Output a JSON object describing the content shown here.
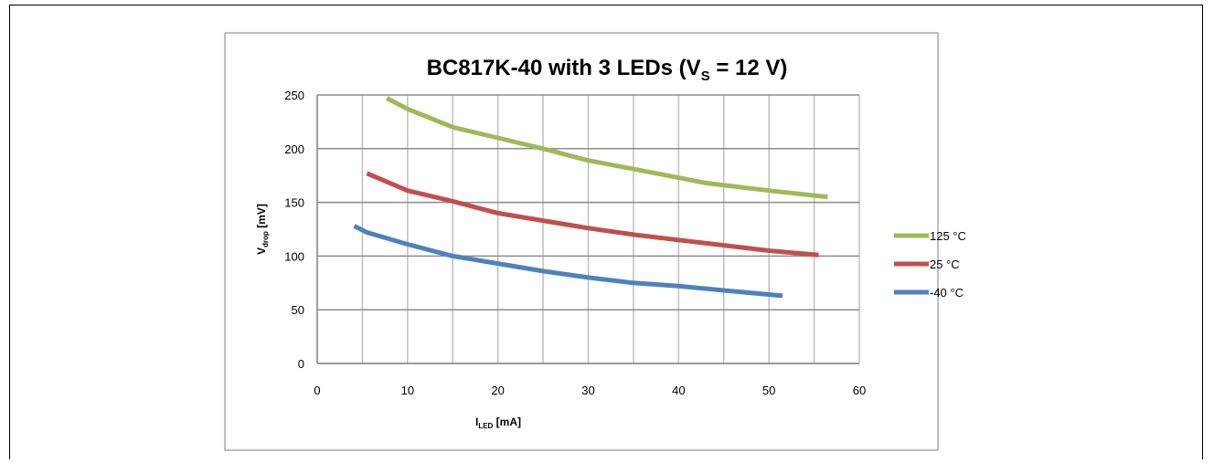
{
  "chart_data": {
    "type": "line",
    "title": {
      "main": "BC817K-40 with 3 LEDs (V",
      "sub": "S",
      "tail": " = 12 V)"
    },
    "xlabel": {
      "main": "I",
      "sub": "LED",
      "tail": " [mA]"
    },
    "ylabel": {
      "main": "V",
      "sub": "drop",
      "tail": " [mV]"
    },
    "xlim": [
      0,
      60
    ],
    "ylim": [
      0,
      250
    ],
    "x_ticks": [
      0,
      10,
      20,
      30,
      40,
      50,
      60
    ],
    "y_ticks": [
      0,
      50,
      100,
      150,
      200,
      250
    ],
    "x_minor_step": 5,
    "grid": true,
    "legend_position": "right",
    "series": [
      {
        "name": "125 °C",
        "color": "#9BBB59",
        "x": [
          7.7,
          10,
          15,
          20,
          25,
          30,
          35,
          40,
          43,
          50,
          56.5
        ],
        "y": [
          247,
          237,
          220,
          210,
          200,
          189,
          181,
          173,
          168,
          161,
          155
        ]
      },
      {
        "name": "25 °C",
        "color": "#C0504D",
        "x": [
          5.5,
          10,
          15,
          20,
          25,
          30,
          35,
          40,
          45,
          50,
          55.5
        ],
        "y": [
          177,
          161,
          151,
          140,
          133,
          126,
          120,
          115,
          110,
          105,
          101
        ]
      },
      {
        "name": "-40 °C",
        "color": "#4F81BD",
        "x": [
          4.1,
          5.5,
          10,
          15,
          20,
          25,
          30,
          35,
          40,
          45,
          51.5
        ],
        "y": [
          128,
          122,
          111,
          100,
          93,
          86,
          80,
          75,
          72,
          68,
          63
        ]
      }
    ]
  }
}
